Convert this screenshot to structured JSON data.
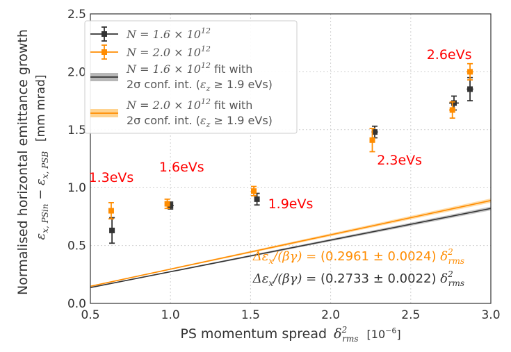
{
  "chart_data": {
    "type": "scatter",
    "xlabel_main": "PS momentum spread",
    "xlabel_symbol": "δ",
    "xlabel_sub": "rms",
    "xlabel_sup": "2",
    "xlabel_unit": "[10",
    "xlabel_unit_sup": "−6",
    "xlabel_unit_close": "]",
    "ylabel": "Normalised horizontal emittance growth",
    "ylabel2": "ε",
    "ylabel2_sub1": "x, PSin",
    "ylabel2_mid": " − ε",
    "ylabel2_sub2": "x, PSB",
    "ylabel2_unit": "[mm mrad]",
    "xlim": [
      0.5,
      3.0
    ],
    "ylim": [
      0.0,
      2.5
    ],
    "xticks": [
      "0.5",
      "1.0",
      "1.5",
      "2.0",
      "2.5",
      "3.0"
    ],
    "yticks": [
      "0.0",
      "0.5",
      "1.0",
      "1.5",
      "2.0",
      "2.5"
    ],
    "grid": true,
    "legend_position": "top-left",
    "colors": {
      "dark": "#333333",
      "orange": "#ff8c00",
      "red": "#ff0000"
    },
    "series": [
      {
        "name": "N = 1.6 × 10¹²",
        "legend_sup": "12",
        "color": "#333333",
        "x": [
          0.635,
          1.0,
          1.54,
          2.275,
          2.77,
          2.87
        ],
        "y": [
          0.63,
          0.845,
          0.9,
          1.48,
          1.73,
          1.85
        ],
        "yerr": [
          0.11,
          0.03,
          0.05,
          0.05,
          0.06,
          0.1
        ],
        "xerr": [
          0.01,
          0.02,
          0.01,
          0.02,
          0.03,
          0.02
        ]
      },
      {
        "name": "N = 2.0 × 10¹²",
        "legend_sup": "12",
        "color": "#ff8c00",
        "x": [
          0.63,
          0.98,
          1.52,
          2.26,
          2.76,
          2.87
        ],
        "y": [
          0.8,
          0.86,
          0.97,
          1.41,
          1.67,
          2.0
        ],
        "yerr": [
          0.07,
          0.04,
          0.04,
          0.1,
          0.07,
          0.07
        ],
        "xerr": [
          0.01,
          0.01,
          0.01,
          0.01,
          0.02,
          0.02
        ]
      }
    ],
    "fits": [
      {
        "legend_line1_a": "N = 1.6 × 10",
        "legend_line1_sup": "12",
        "legend_line1_b": " fit with",
        "legend_line2_a": "2σ conf. int. (",
        "legend_line2_eps": "ε",
        "legend_line2_sub": "z",
        "legend_line2_b": " ≥ 1.9 eVs)",
        "color": "#333333",
        "band_color": "#999999",
        "slope": 0.2733,
        "slope_err": 0.0022,
        "x_range": [
          0.5,
          3.0
        ]
      },
      {
        "legend_line1_a": "N = 2.0 × 10",
        "legend_line1_sup": "12",
        "legend_line1_b": " fit with",
        "legend_line2_a": "2σ conf. int. (",
        "legend_line2_eps": "ε",
        "legend_line2_sub": "z",
        "legend_line2_b": " ≥ 1.9 eVs)",
        "color": "#ff8c00",
        "band_color": "#ffc060",
        "slope": 0.2961,
        "slope_err": 0.0024,
        "x_range": [
          0.5,
          3.0
        ]
      }
    ],
    "annotations": [
      {
        "text": "1.3eVs",
        "x": 0.63,
        "y": 1.05
      },
      {
        "text": "1.6eVs",
        "x": 1.07,
        "y": 1.14
      },
      {
        "text": "1.9eVs",
        "x": 1.75,
        "y": 0.82
      },
      {
        "text": "2.3eVs",
        "x": 2.43,
        "y": 1.2
      },
      {
        "text": "2.6eVs",
        "x": 2.74,
        "y": 2.11
      }
    ],
    "equations": [
      {
        "lhs_a": "Δε",
        "lhs_sub": "x",
        "lhs_b": "/(βγ) = ",
        "value": "(0.2961 ± 0.0024)",
        "rhs_sym": "δ",
        "rhs_sub": "rms",
        "rhs_sup": "2",
        "color": "#ff8c00"
      },
      {
        "lhs_a": "Δε",
        "lhs_sub": "x",
        "lhs_b": "/(βγ) = ",
        "value": "(0.2733 ± 0.0022)",
        "rhs_sym": "δ",
        "rhs_sub": "rms",
        "rhs_sup": "2",
        "color": "#333333"
      }
    ]
  }
}
